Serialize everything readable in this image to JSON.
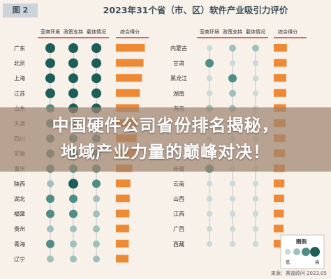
{
  "header": {
    "figure_label": "图 2",
    "title": "2023年31个省（市、区）软件产业吸引力评价"
  },
  "overlay": {
    "line1": "中国硬件公司省份排名揭秘，",
    "line2": "地域产业力量的巅峰对决！"
  },
  "footer": {
    "source": "来源：赛迪顾问 2023,05"
  },
  "chart_data": [
    {
      "type": "table",
      "columns": [
        "营商环境",
        "政策支持",
        "载体情况",
        "综合得分"
      ],
      "rows": [
        {
          "region": "广东",
          "levels": [
            4,
            4,
            4
          ],
          "score": 0.92
        },
        {
          "region": "北京",
          "levels": [
            4,
            4,
            4
          ],
          "score": 0.88
        },
        {
          "region": "上海",
          "levels": [
            4,
            4,
            4
          ],
          "score": 0.83
        },
        {
          "region": "江苏",
          "levels": [
            4,
            4,
            4
          ],
          "score": 0.76
        },
        {
          "region": "山东",
          "levels": [
            3,
            4,
            4
          ],
          "score": 0.74
        },
        {
          "region": "天津",
          "levels": [
            3,
            3,
            3
          ],
          "score": 0.68
        },
        {
          "region": "四川",
          "levels": [
            3,
            3,
            3
          ],
          "score": 0.66
        },
        {
          "region": "安徽",
          "levels": [
            3,
            4,
            3
          ],
          "score": 0.64
        },
        {
          "region": "重庆",
          "levels": [
            3,
            3,
            3
          ],
          "score": 0.52
        },
        {
          "region": "陕西",
          "levels": [
            2,
            4,
            3
          ],
          "score": 0.46
        },
        {
          "region": "湖北",
          "levels": [
            3,
            3,
            2
          ],
          "score": 0.44
        },
        {
          "region": "福建",
          "levels": [
            3,
            3,
            2
          ],
          "score": 0.43
        },
        {
          "region": "贵州",
          "levels": [
            2,
            2,
            2
          ],
          "score": 0.42
        },
        {
          "region": "青海",
          "levels": [
            3,
            2,
            2
          ],
          "score": 0.41
        },
        {
          "region": "辽宁",
          "levels": [
            2,
            2,
            2
          ],
          "score": 0.4
        }
      ]
    },
    {
      "type": "table",
      "columns": [
        "营商环境",
        "政策支持",
        "载体情况",
        "综合得分"
      ],
      "rows": [
        {
          "region": "内蒙古",
          "levels": [
            1,
            2,
            2
          ],
          "score": 0.42
        },
        {
          "region": "甘肃",
          "levels": [
            3,
            1,
            1
          ],
          "score": 0.41
        },
        {
          "region": "黑龙江",
          "levels": [
            1,
            3,
            1
          ],
          "score": 0.4
        },
        {
          "region": "湖南",
          "levels": [
            1,
            2,
            1
          ],
          "score": 0.4
        },
        {
          "region": "海南",
          "levels": [
            2,
            2,
            1
          ],
          "score": 0.39
        },
        {
          "region": "",
          "levels": [
            1,
            1,
            1
          ],
          "score": 0.38
        },
        {
          "region": "",
          "levels": [
            1,
            1,
            1
          ],
          "score": 0.37
        },
        {
          "region": "",
          "levels": [
            1,
            1,
            1
          ],
          "score": 0.36
        },
        {
          "region": "新疆",
          "levels": [
            3,
            1,
            1
          ],
          "score": 0.35
        },
        {
          "region": "云南",
          "levels": [
            1,
            1,
            1
          ],
          "score": 0.34
        },
        {
          "region": "山西",
          "levels": [
            1,
            1,
            1
          ],
          "score": 0.33
        },
        {
          "region": "江西",
          "levels": [
            1,
            1,
            1
          ],
          "score": 0.32
        },
        {
          "region": "广西",
          "levels": [
            1,
            1,
            1
          ],
          "score": 0.31
        },
        {
          "region": "西藏",
          "levels": [
            1,
            1,
            1
          ],
          "score": 0.3
        }
      ]
    }
  ],
  "legend": {
    "title": "图例",
    "low_label": "低",
    "high_label": "高",
    "levels": [
      1,
      2,
      3,
      4
    ]
  },
  "colors": {
    "level": [
      "#c9dad8",
      "#9fc0bd",
      "#4f8d87",
      "#1c5e58"
    ],
    "score_bar": "#ee8a35",
    "header_line": "#cc3b3b",
    "grid_line": "#c9c4bd",
    "text": "#2e2e2e"
  }
}
